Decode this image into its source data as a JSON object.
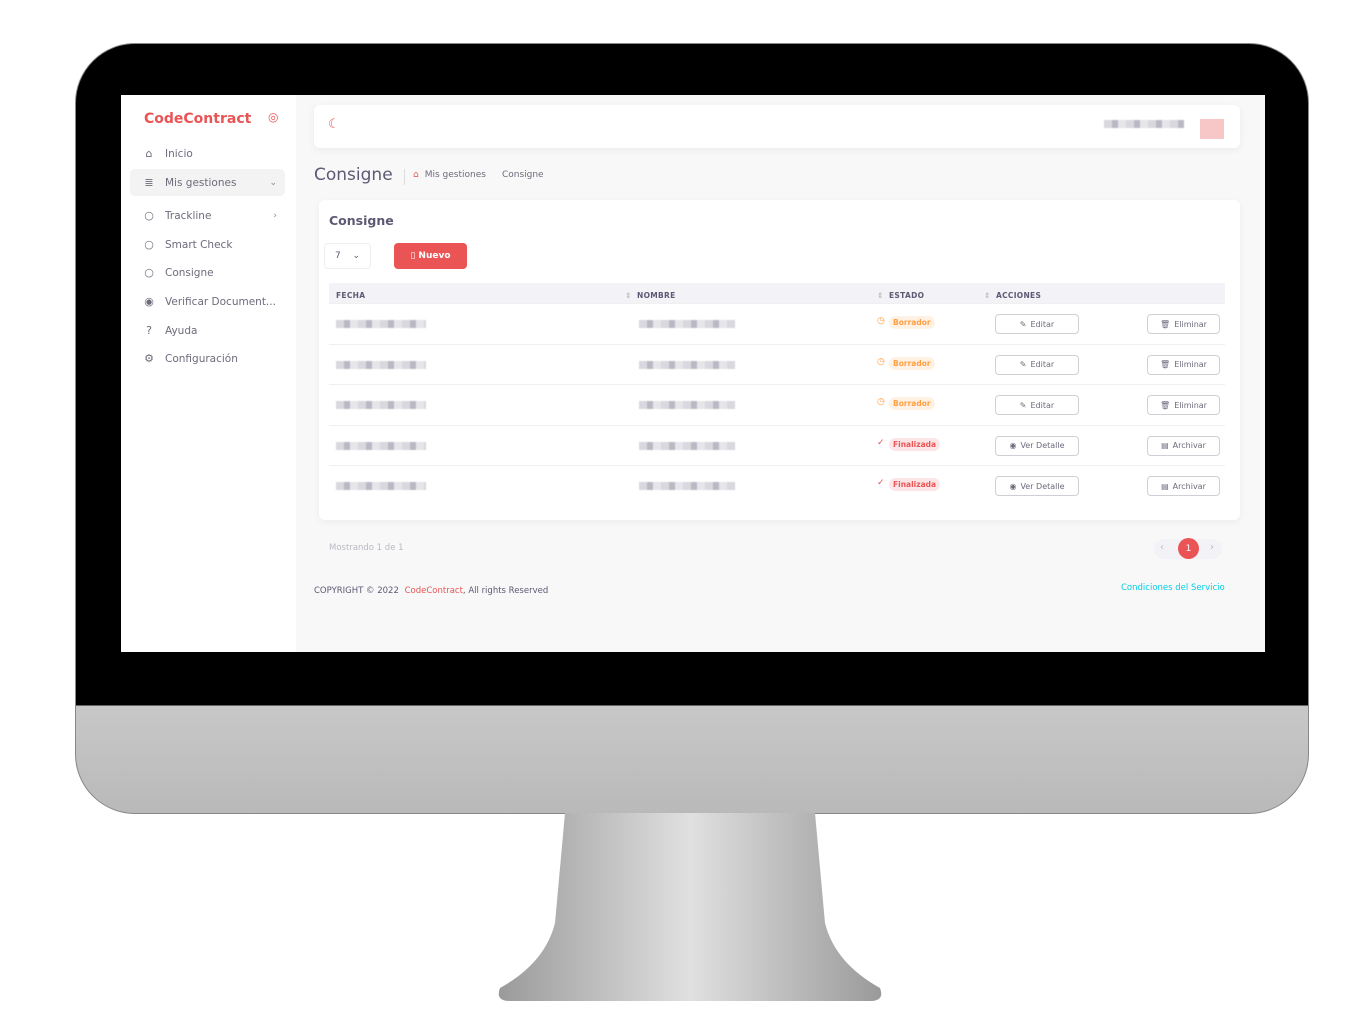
{
  "app": {
    "brand": "CodeContract"
  },
  "sidebar": {
    "items": [
      {
        "label": "Inicio",
        "icon": "home-icon"
      },
      {
        "label": "Mis gestiones",
        "icon": "menu-icon"
      },
      {
        "label": "Trackline",
        "icon": "circle-icon"
      },
      {
        "label": "Smart Check",
        "icon": "circle-icon"
      },
      {
        "label": "Consigne",
        "icon": "circle-icon"
      },
      {
        "label": "Verificar Document...",
        "icon": "eye-icon"
      },
      {
        "label": "Ayuda",
        "icon": "help-icon"
      },
      {
        "label": "Configuración",
        "icon": "gear-icon"
      }
    ]
  },
  "page": {
    "title": "Consigne",
    "breadcrumb": [
      "Mis gestiones",
      "Consigne"
    ]
  },
  "card": {
    "title": "Consigne",
    "page_size": "7",
    "new_label": "Nuevo"
  },
  "table": {
    "headers": [
      "FECHA",
      "NOMBRE",
      "ESTADO",
      "ACCIONES"
    ],
    "rows": [
      {
        "estado": "Borrador",
        "action1": "Editar",
        "action2": "Eliminar"
      },
      {
        "estado": "Borrador",
        "action1": "Editar",
        "action2": "Eliminar"
      },
      {
        "estado": "Borrador",
        "action1": "Editar",
        "action2": "Eliminar"
      },
      {
        "estado": "Finalizada",
        "action1": "Ver Detalle",
        "action2": "Archivar"
      },
      {
        "estado": "Finalizada",
        "action1": "Ver Detalle",
        "action2": "Archivar"
      }
    ]
  },
  "pagination": {
    "info": "Mostrando 1 de 1",
    "current": "1"
  },
  "footer": {
    "copyright": "COPYRIGHT © 2022",
    "brand": "CodeContract",
    "rights": ", All rights Reserved",
    "terms": "Condiciones del Servicio"
  },
  "colors": {
    "accent": "#ea5455",
    "warning": "#ff9f43",
    "link": "#00cfe8"
  }
}
